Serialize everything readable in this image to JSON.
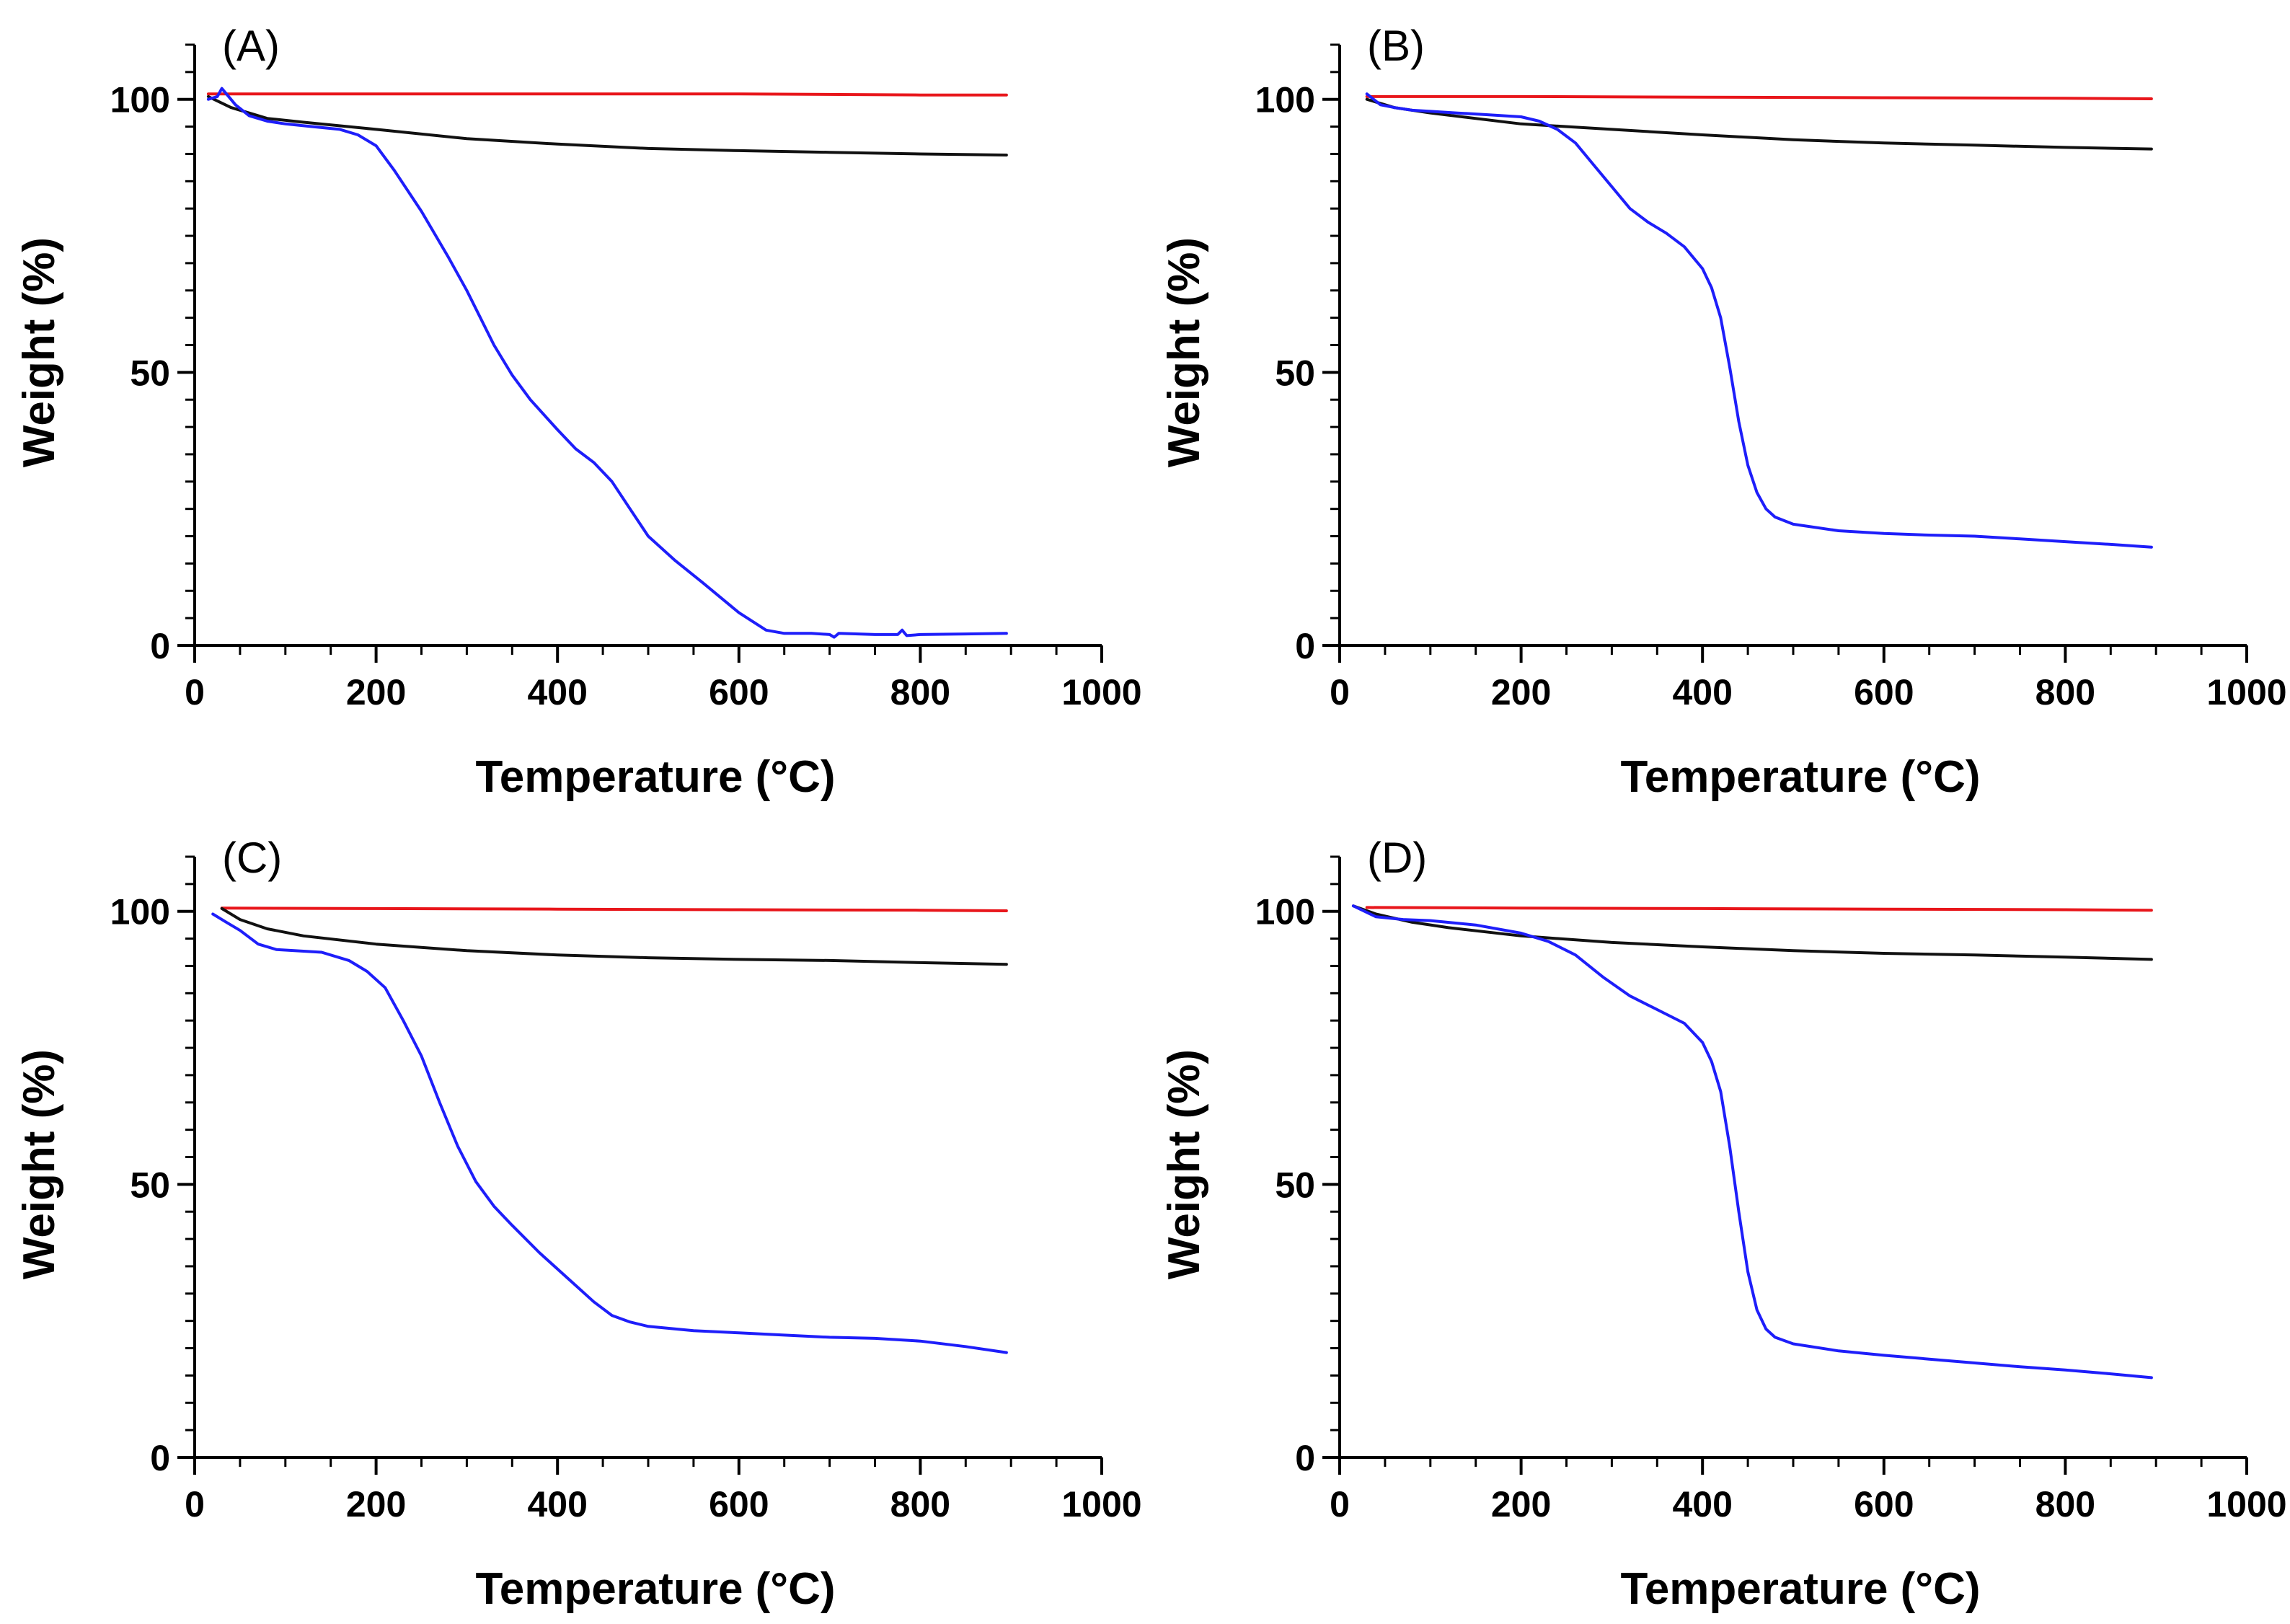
{
  "chart_data": [
    {
      "type": "line",
      "panel_label": "(A)",
      "xlabel": "Temperature  (°C)",
      "ylabel": "Weight (%)",
      "xlim": [
        0,
        1000
      ],
      "ylim": [
        0,
        110
      ],
      "xticks": [
        0,
        200,
        400,
        600,
        800,
        1000
      ],
      "yticks": [
        0,
        50,
        100
      ],
      "series": [
        {
          "name": "red",
          "color": "#e8161b",
          "x": [
            15,
            60,
            200,
            400,
            600,
            800,
            895
          ],
          "y": [
            101,
            101,
            101,
            101,
            101,
            100.8,
            100.8
          ]
        },
        {
          "name": "black",
          "color": "#111111",
          "x": [
            15,
            40,
            80,
            120,
            200,
            300,
            400,
            500,
            600,
            700,
            800,
            895
          ],
          "y": [
            100.5,
            98.5,
            96.5,
            95.8,
            94.5,
            92.8,
            91.8,
            91,
            90.6,
            90.3,
            90,
            89.8
          ]
        },
        {
          "name": "blue",
          "color": "#1e1efa",
          "x": [
            15,
            25,
            30,
            35,
            45,
            60,
            80,
            100,
            130,
            160,
            180,
            200,
            220,
            250,
            280,
            300,
            330,
            350,
            370,
            400,
            420,
            440,
            460,
            480,
            500,
            530,
            560,
            600,
            630,
            650,
            680,
            700,
            705,
            710,
            750,
            775,
            780,
            785,
            800,
            850,
            895
          ],
          "y": [
            100,
            100.5,
            102,
            101,
            99,
            97,
            96,
            95.5,
            95,
            94.5,
            93.5,
            91.5,
            87,
            79.5,
            71,
            65,
            55,
            49.5,
            45,
            39.5,
            36,
            33.5,
            30,
            25,
            20,
            15.5,
            11.5,
            6,
            2.8,
            2.2,
            2.2,
            2,
            1.5,
            2.2,
            2.0,
            2.0,
            2.8,
            1.8,
            2,
            2.1,
            2.2
          ]
        }
      ]
    },
    {
      "type": "line",
      "panel_label": "(B)",
      "xlabel": "Temperature  (°C)",
      "ylabel": "Weight (%)",
      "xlim": [
        0,
        1000
      ],
      "ylim": [
        0,
        110
      ],
      "xticks": [
        0,
        200,
        400,
        600,
        800,
        1000
      ],
      "yticks": [
        0,
        50,
        100
      ],
      "series": [
        {
          "name": "red",
          "color": "#e8161b",
          "x": [
            30,
            200,
            400,
            600,
            800,
            895
          ],
          "y": [
            100.5,
            100.5,
            100.4,
            100.3,
            100.2,
            100.1
          ]
        },
        {
          "name": "black",
          "color": "#111111",
          "x": [
            30,
            60,
            100,
            200,
            300,
            400,
            500,
            600,
            700,
            800,
            895
          ],
          "y": [
            100,
            98.5,
            97.5,
            95.5,
            94.5,
            93.5,
            92.6,
            92,
            91.6,
            91.2,
            90.9
          ]
        },
        {
          "name": "blue",
          "color": "#1e1efa",
          "x": [
            30,
            45,
            60,
            80,
            100,
            130,
            160,
            200,
            220,
            240,
            260,
            280,
            300,
            320,
            340,
            360,
            380,
            400,
            410,
            420,
            430,
            440,
            450,
            460,
            470,
            480,
            500,
            550,
            600,
            650,
            700,
            750,
            800,
            850,
            895
          ],
          "y": [
            101,
            99,
            98.5,
            98,
            97.8,
            97.5,
            97.2,
            96.8,
            96,
            94.5,
            92,
            88,
            84,
            80,
            77.5,
            75.5,
            73,
            69,
            65.5,
            60,
            51,
            41,
            33,
            28,
            25,
            23.5,
            22.2,
            21,
            20.5,
            20.2,
            20,
            19.5,
            19,
            18.5,
            18
          ]
        }
      ]
    },
    {
      "type": "line",
      "panel_label": "(C)",
      "xlabel": "Temperature  (°C)",
      "ylabel": "Weight (%)",
      "xlim": [
        0,
        1000
      ],
      "ylim": [
        0,
        110
      ],
      "xticks": [
        0,
        200,
        400,
        600,
        800,
        1000
      ],
      "yticks": [
        0,
        50,
        100
      ],
      "series": [
        {
          "name": "red",
          "color": "#e8161b",
          "x": [
            30,
            200,
            400,
            600,
            800,
            895
          ],
          "y": [
            100.6,
            100.5,
            100.4,
            100.3,
            100.2,
            100.1
          ]
        },
        {
          "name": "black",
          "color": "#111111",
          "x": [
            30,
            50,
            80,
            120,
            200,
            300,
            400,
            500,
            600,
            700,
            800,
            895
          ],
          "y": [
            100.5,
            98.5,
            96.8,
            95.5,
            94,
            92.8,
            92,
            91.5,
            91.2,
            91,
            90.6,
            90.3
          ]
        },
        {
          "name": "blue",
          "color": "#1e1efa",
          "x": [
            20,
            35,
            50,
            70,
            90,
            110,
            140,
            170,
            190,
            210,
            230,
            250,
            270,
            290,
            310,
            330,
            350,
            380,
            410,
            440,
            460,
            480,
            500,
            550,
            600,
            650,
            700,
            750,
            800,
            850,
            895
          ],
          "y": [
            99.5,
            98,
            96.5,
            94,
            93,
            92.8,
            92.5,
            91,
            89,
            86,
            80,
            73.5,
            65,
            57,
            50.5,
            46,
            42.5,
            37.5,
            33,
            28.5,
            26,
            24.8,
            24,
            23.2,
            22.8,
            22.4,
            22,
            21.8,
            21.3,
            20.3,
            19.2
          ]
        }
      ]
    },
    {
      "type": "line",
      "panel_label": "(D)",
      "xlabel": "Temperature  (°C)",
      "ylabel": "Weight (%)",
      "xlim": [
        0,
        1000
      ],
      "ylim": [
        0,
        110
      ],
      "xticks": [
        0,
        200,
        400,
        600,
        800,
        1000
      ],
      "yticks": [
        0,
        50,
        100
      ],
      "series": [
        {
          "name": "red",
          "color": "#e8161b",
          "x": [
            30,
            200,
            400,
            600,
            800,
            895
          ],
          "y": [
            100.7,
            100.6,
            100.5,
            100.4,
            100.3,
            100.2
          ]
        },
        {
          "name": "black",
          "color": "#111111",
          "x": [
            15,
            40,
            80,
            120,
            200,
            300,
            400,
            500,
            600,
            700,
            800,
            895
          ],
          "y": [
            101,
            99.5,
            98,
            97,
            95.5,
            94.3,
            93.5,
            92.8,
            92.3,
            92,
            91.6,
            91.2
          ]
        },
        {
          "name": "blue",
          "color": "#1e1efa",
          "x": [
            15,
            40,
            70,
            100,
            150,
            200,
            230,
            260,
            290,
            320,
            350,
            380,
            400,
            410,
            420,
            430,
            440,
            450,
            460,
            470,
            480,
            500,
            550,
            600,
            650,
            700,
            750,
            800,
            850,
            895
          ],
          "y": [
            101,
            99,
            98.5,
            98.3,
            97.5,
            96,
            94.5,
            92,
            88,
            84.5,
            82,
            79.5,
            76,
            72.5,
            67,
            57,
            45,
            34,
            27,
            23.5,
            22,
            20.8,
            19.5,
            18.7,
            18,
            17.3,
            16.6,
            16,
            15.3,
            14.6
          ]
        }
      ]
    }
  ]
}
